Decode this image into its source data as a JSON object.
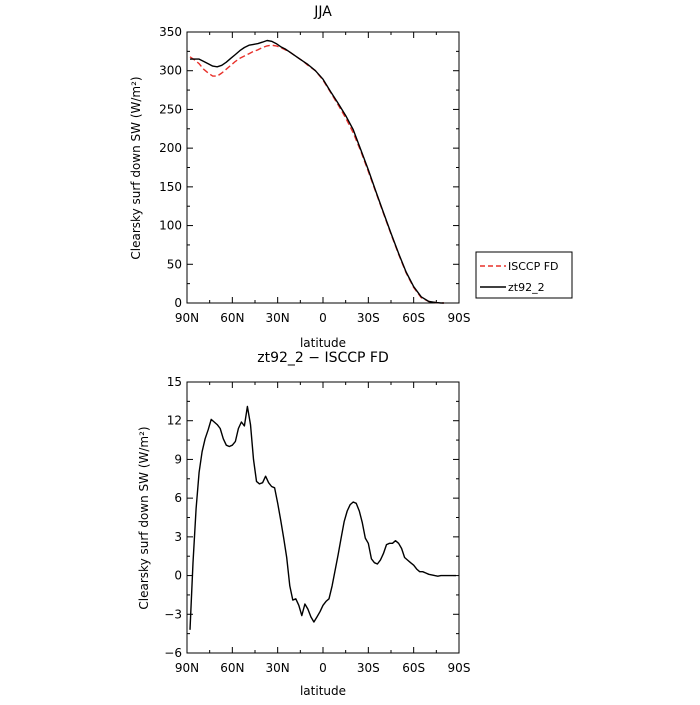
{
  "chart_data": [
    {
      "type": "line",
      "title": "JJA",
      "xlabel": "latitude",
      "ylabel": "Clearsky surf down SW (W/m²)",
      "xlim": [
        90,
        -90
      ],
      "ylim": [
        0,
        350
      ],
      "x_ticks": [
        90,
        60,
        30,
        0,
        -30,
        -60,
        -90
      ],
      "x_tick_labels": [
        "90N",
        "60N",
        "30N",
        "0",
        "30S",
        "60S",
        "90S"
      ],
      "y_ticks": [
        0,
        50,
        100,
        150,
        200,
        250,
        300,
        350
      ],
      "y_tick_labels": [
        "0",
        "50",
        "100",
        "150",
        "200",
        "250",
        "300",
        "350"
      ],
      "legend_position": "outside-right-bottom",
      "series": [
        {
          "name": "ISCCP FD",
          "color": "#e8302a",
          "dash": "dashed",
          "x": [
            88,
            85,
            82,
            79,
            76,
            73,
            70,
            67,
            64,
            61,
            58,
            55,
            52,
            49,
            46,
            43,
            40,
            37,
            34,
            31,
            28,
            25,
            22,
            19,
            16,
            13,
            10,
            5,
            0,
            -5,
            -10,
            -15,
            -20,
            -25,
            -30,
            -35,
            -40,
            -45,
            -50,
            -55,
            -60,
            -65,
            -70,
            -75,
            -78,
            -80
          ],
          "values": [
            318,
            314,
            309,
            302,
            297,
            293,
            293,
            297,
            302,
            307,
            312,
            316,
            319,
            322,
            325,
            327,
            330,
            332,
            333,
            332,
            330,
            327,
            324,
            320,
            316,
            312,
            307,
            300,
            288,
            272,
            256,
            239,
            220,
            196,
            170,
            143,
            116,
            89,
            63,
            39,
            20,
            7,
            2,
            0.5,
            0,
            0
          ]
        },
        {
          "name": "zt92_2",
          "color": "#000000",
          "dash": "solid",
          "x": [
            88,
            85,
            82,
            79,
            76,
            73,
            70,
            67,
            64,
            61,
            58,
            55,
            52,
            49,
            46,
            43,
            40,
            37,
            34,
            31,
            28,
            25,
            22,
            19,
            16,
            13,
            10,
            5,
            0,
            -5,
            -10,
            -15,
            -20,
            -25,
            -30,
            -35,
            -40,
            -45,
            -50,
            -55,
            -60,
            -65,
            -70,
            -75,
            -78,
            -80
          ],
          "values": [
            315,
            315,
            315,
            312,
            309,
            306,
            305,
            307,
            311,
            316,
            321,
            326,
            330,
            333,
            334,
            335,
            337,
            339,
            338,
            335,
            331,
            328,
            324,
            320,
            316,
            312,
            308,
            300,
            289,
            273,
            258,
            242,
            224,
            198,
            172,
            144,
            117,
            90,
            64,
            40,
            21,
            8,
            2,
            0.5,
            0,
            0
          ]
        }
      ]
    },
    {
      "type": "line",
      "title": "zt92_2 − ISCCP FD",
      "xlabel": "latitude",
      "ylabel": "Clearsky surf down SW (W/m²)",
      "xlim": [
        90,
        -90
      ],
      "ylim": [
        -6,
        15
      ],
      "x_ticks": [
        90,
        60,
        30,
        0,
        -30,
        -60,
        -90
      ],
      "x_tick_labels": [
        "90N",
        "60N",
        "30N",
        "0",
        "30S",
        "60S",
        "90S"
      ],
      "y_ticks": [
        -6,
        -3,
        0,
        3,
        6,
        9,
        12,
        15
      ],
      "y_tick_labels": [
        "−6",
        "−3",
        "0",
        "3",
        "6",
        "9",
        "12",
        "15"
      ],
      "series": [
        {
          "color": "#000000",
          "dash": "solid",
          "x": [
            88,
            86,
            84,
            82,
            80,
            78,
            76,
            74,
            72,
            70,
            68,
            66,
            64,
            62,
            60,
            58,
            56,
            54,
            52,
            50,
            48,
            46,
            44,
            42,
            40,
            38,
            36,
            34,
            32,
            30,
            28,
            26,
            24,
            22,
            20,
            18,
            16,
            14,
            12,
            10,
            8,
            6,
            4,
            2,
            0,
            -2,
            -4,
            -6,
            -8,
            -10,
            -12,
            -14,
            -16,
            -18,
            -20,
            -22,
            -24,
            -26,
            -28,
            -30,
            -32,
            -34,
            -36,
            -38,
            -40,
            -42,
            -44,
            -46,
            -48,
            -50,
            -52,
            -54,
            -56,
            -58,
            -60,
            -62,
            -64,
            -66,
            -68,
            -70,
            -72,
            -74,
            -76,
            -78,
            -80,
            -82,
            -84,
            -86,
            -88
          ],
          "values": [
            -4.2,
            1.0,
            5.2,
            8.0,
            9.6,
            10.6,
            11.3,
            12.1,
            11.9,
            11.7,
            11.4,
            10.6,
            10.1,
            10.0,
            10.1,
            10.4,
            11.4,
            11.9,
            11.6,
            13.1,
            11.7,
            9.0,
            7.3,
            7.1,
            7.2,
            7.7,
            7.2,
            6.9,
            6.8,
            5.6,
            4.3,
            2.9,
            1.4,
            -0.8,
            -1.9,
            -1.8,
            -2.3,
            -3.1,
            -2.2,
            -2.6,
            -3.2,
            -3.6,
            -3.2,
            -2.8,
            -2.3,
            -2.0,
            -1.8,
            -0.8,
            0.4,
            1.6,
            2.9,
            4.2,
            5.0,
            5.5,
            5.7,
            5.6,
            5.0,
            4.1,
            2.9,
            2.5,
            1.3,
            1.0,
            0.9,
            1.2,
            1.7,
            2.4,
            2.5,
            2.5,
            2.7,
            2.5,
            2.1,
            1.4,
            1.2,
            1.0,
            0.8,
            0.5,
            0.3,
            0.3,
            0.2,
            0.1,
            0.05,
            0.0,
            -0.05,
            0.0,
            0.0,
            0.0,
            0.0,
            0.0,
            0.0
          ]
        }
      ]
    }
  ]
}
